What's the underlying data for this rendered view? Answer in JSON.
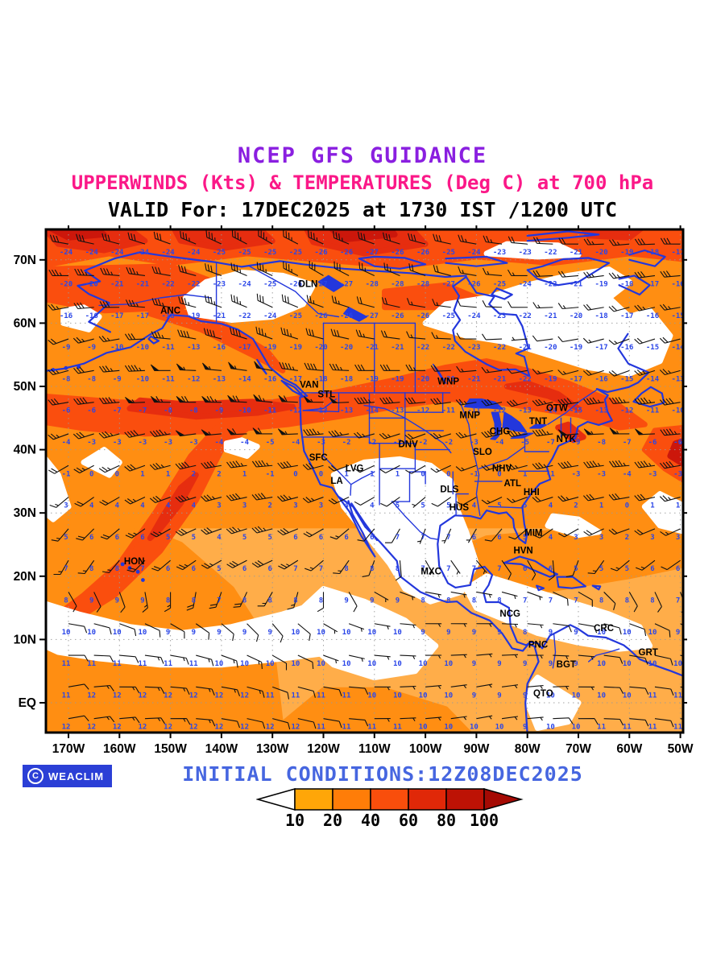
{
  "title": {
    "line1": "NCEP GFS GUIDANCE",
    "line2": "UPPERWINDS (Kts) & TEMPERATURES (Deg C) at 700 hPa",
    "line3": "VALID For: 17DEC2025 at 1730 IST /1200 UTC"
  },
  "footer": {
    "copyright": "C",
    "badge": "WEACLIM",
    "initial_conditions": "INITIAL CONDITIONS:12Z08DEC2025"
  },
  "colors": {
    "title1": "#8A1FE0",
    "title2": "#FB1888",
    "title3": "#000000",
    "initial_conditions": "#4666E0",
    "badge_bg": "#2B3FD6",
    "badge_text": "#FFFFFF",
    "coast": "#2337DC",
    "barb": "#111111",
    "temp_text": "#2B46E8",
    "station_text": "#000000",
    "grid_dots": "#9A9A9A",
    "frame": "#000000",
    "band_lt10": "#FFFFFF",
    "band_10": "#FFAD49",
    "band_20": "#FF8E12",
    "band_40": "#FA4E0E",
    "band_60": "#E62D0F",
    "band_80": "#CC170B"
  },
  "axes": {
    "lat_ticks": [
      {
        "label": "EQ",
        "lat": 0
      },
      {
        "label": "10N",
        "lat": 10
      },
      {
        "label": "20N",
        "lat": 20
      },
      {
        "label": "30N",
        "lat": 30
      },
      {
        "label": "40N",
        "lat": 40
      },
      {
        "label": "50N",
        "lat": 50
      },
      {
        "label": "60N",
        "lat": 60
      },
      {
        "label": "70N",
        "lat": 70
      }
    ],
    "lon_ticks": [
      {
        "label": "170W",
        "lon": 170
      },
      {
        "label": "160W",
        "lon": 160
      },
      {
        "label": "150W",
        "lon": 150
      },
      {
        "label": "140W",
        "lon": 140
      },
      {
        "label": "130W",
        "lon": 130
      },
      {
        "label": "120W",
        "lon": 120
      },
      {
        "label": "110W",
        "lon": 110
      },
      {
        "label": "100W",
        "lon": 100
      },
      {
        "label": "90W",
        "lon": 90
      },
      {
        "label": "80W",
        "lon": 80
      },
      {
        "label": "70W",
        "lon": 70
      },
      {
        "label": "60W",
        "lon": 60
      },
      {
        "label": "50W",
        "lon": 50
      }
    ]
  },
  "legend": {
    "values": [
      "10",
      "20",
      "40",
      "60",
      "80",
      "100"
    ],
    "colors": [
      "#FFA608",
      "#FF7D08",
      "#F94E0C",
      "#E02808",
      "#BD1205"
    ],
    "left_arrow_color": "#FFFFFF",
    "right_arrow_color": "#A50A04"
  },
  "stations": [
    {
      "id": "DLN",
      "lon_w": 123.0,
      "lat": 65.7
    },
    {
      "id": "ANC",
      "lon_w": 150.0,
      "lat": 61.5
    },
    {
      "id": "VAN",
      "lon_w": 122.8,
      "lat": 49.8
    },
    {
      "id": "STL",
      "lon_w": 119.4,
      "lat": 48.3
    },
    {
      "id": "WNP",
      "lon_w": 95.5,
      "lat": 50.3
    },
    {
      "id": "MNP",
      "lon_w": 91.3,
      "lat": 45.0
    },
    {
      "id": "CHG",
      "lon_w": 85.4,
      "lat": 42.4
    },
    {
      "id": "TNT",
      "lon_w": 77.9,
      "lat": 44.0
    },
    {
      "id": "OTW",
      "lon_w": 74.2,
      "lat": 46.1
    },
    {
      "id": "NYK",
      "lon_w": 72.4,
      "lat": 41.2
    },
    {
      "id": "DNV",
      "lon_w": 103.4,
      "lat": 40.4
    },
    {
      "id": "SLO",
      "lon_w": 88.8,
      "lat": 39.2
    },
    {
      "id": "SFC",
      "lon_w": 121.0,
      "lat": 38.3
    },
    {
      "id": "LVG",
      "lon_w": 113.9,
      "lat": 36.6
    },
    {
      "id": "LA",
      "lon_w": 117.4,
      "lat": 34.6
    },
    {
      "id": "NHV",
      "lon_w": 85.0,
      "lat": 36.6
    },
    {
      "id": "ATL",
      "lon_w": 82.9,
      "lat": 34.2
    },
    {
      "id": "DLS",
      "lon_w": 95.3,
      "lat": 33.3
    },
    {
      "id": "HUS",
      "lon_w": 93.4,
      "lat": 30.4
    },
    {
      "id": "HHI",
      "lon_w": 79.2,
      "lat": 32.8
    },
    {
      "id": "MIM",
      "lon_w": 78.8,
      "lat": 26.4
    },
    {
      "id": "HVN",
      "lon_w": 80.8,
      "lat": 23.6
    },
    {
      "id": "MXC",
      "lon_w": 98.9,
      "lat": 20.3
    },
    {
      "id": "HON",
      "lon_w": 157.1,
      "lat": 21.9
    },
    {
      "id": "NCG",
      "lon_w": 83.4,
      "lat": 13.6
    },
    {
      "id": "CRC",
      "lon_w": 65.0,
      "lat": 11.3
    },
    {
      "id": "PNC",
      "lon_w": 77.9,
      "lat": 8.7
    },
    {
      "id": "GRT",
      "lon_w": 56.3,
      "lat": 7.5
    },
    {
      "id": "BGT",
      "lon_w": 72.4,
      "lat": 5.6
    },
    {
      "id": "QTO",
      "lon_w": 76.9,
      "lat": 1.0
    }
  ],
  "chart_data": {
    "type": "map",
    "projection": "latlon",
    "level_hpa": 700,
    "units": {
      "wind": "Kts",
      "temperature": "Deg C"
    },
    "lon_range_w": [
      174.5,
      49.4
    ],
    "lat_range": [
      -4.8,
      74.8
    ],
    "wind_speed_bands_kts": [
      10,
      20,
      40,
      60,
      80,
      100
    ],
    "grid_lons_w": [
      170,
      160,
      150,
      140,
      130,
      120,
      110,
      100,
      90,
      80,
      70,
      60,
      50
    ],
    "grid_lats": [
      72.5,
      67.5,
      62.5,
      57.5,
      52.5,
      47.5,
      42.5,
      37.5,
      32.5,
      27.5,
      22.5,
      17.5,
      12.5,
      7.5,
      2.5,
      -2.5
    ],
    "temps_c": [
      [
        -24,
        -24,
        -24,
        -25,
        -25,
        -26,
        -27,
        -26,
        -24,
        -23,
        -21,
        -19,
        -17
      ],
      [
        -20,
        -21,
        -22,
        -23,
        -25,
        -27,
        -28,
        -28,
        -26,
        -24,
        -21,
        -18,
        -16
      ],
      [
        -16,
        -17,
        -18,
        -21,
        -24,
        -26,
        -27,
        -26,
        -24,
        -22,
        -20,
        -17,
        -15
      ],
      [
        -9,
        -10,
        -11,
        -16,
        -19,
        -20,
        -21,
        -22,
        -23,
        -21,
        -19,
        -16,
        -14
      ],
      [
        -8,
        -9,
        -11,
        -13,
        -16,
        -18,
        -19,
        -20,
        -21,
        -22,
        -17,
        -15,
        -13
      ],
      [
        -6,
        -7,
        -8,
        -9,
        -11,
        -13,
        -14,
        -12,
        -11,
        -13,
        -15,
        -12,
        -10
      ],
      [
        -4,
        -3,
        -3,
        -4,
        -5,
        -3,
        -2,
        -2,
        -3,
        -5,
        -9,
        -7,
        -6
      ],
      [
        -1,
        0,
        1,
        2,
        -1,
        0,
        1,
        0,
        -1,
        1,
        -3,
        -4,
        -3
      ],
      [
        3,
        4,
        4,
        3,
        2,
        3,
        4,
        5,
        4,
        5,
        2,
        0,
        1
      ],
      [
        5,
        6,
        5,
        4,
        5,
        6,
        6,
        7,
        6,
        5,
        3,
        2,
        3
      ],
      [
        7,
        8,
        6,
        5,
        6,
        7,
        8,
        7,
        7,
        6,
        5,
        5,
        6
      ],
      [
        8,
        9,
        8,
        7,
        8,
        8,
        9,
        8,
        8,
        7,
        7,
        8,
        7
      ],
      [
        10,
        10,
        9,
        9,
        9,
        10,
        10,
        9,
        9,
        8,
        9,
        10,
        9
      ],
      [
        11,
        11,
        11,
        10,
        10,
        10,
        10,
        10,
        9,
        9,
        9,
        10,
        10
      ],
      [
        11,
        12,
        12,
        12,
        11,
        11,
        10,
        10,
        9,
        9,
        10,
        10,
        11
      ],
      [
        12,
        12,
        12,
        12,
        12,
        11,
        11,
        10,
        10,
        9,
        10,
        11,
        11
      ]
    ],
    "wind_speed_kts": [
      [
        30,
        30,
        30,
        35,
        35,
        35,
        30,
        30,
        25,
        20,
        20,
        25,
        30
      ],
      [
        35,
        35,
        30,
        30,
        35,
        30,
        25,
        20,
        15,
        15,
        20,
        25,
        30
      ],
      [
        25,
        30,
        35,
        35,
        30,
        25,
        20,
        15,
        10,
        10,
        15,
        20,
        25
      ],
      [
        20,
        25,
        35,
        40,
        35,
        30,
        25,
        15,
        10,
        5,
        10,
        15,
        20
      ],
      [
        25,
        35,
        50,
        55,
        50,
        40,
        30,
        25,
        15,
        10,
        15,
        20,
        25
      ],
      [
        30,
        45,
        65,
        75,
        65,
        55,
        45,
        30,
        25,
        30,
        40,
        45,
        40
      ],
      [
        25,
        35,
        45,
        55,
        60,
        45,
        25,
        20,
        25,
        35,
        50,
        55,
        45
      ],
      [
        20,
        25,
        35,
        40,
        45,
        30,
        10,
        10,
        15,
        25,
        40,
        45,
        40
      ],
      [
        15,
        20,
        30,
        35,
        40,
        25,
        10,
        5,
        10,
        15,
        25,
        30,
        25
      ],
      [
        15,
        20,
        25,
        30,
        35,
        20,
        10,
        5,
        5,
        10,
        15,
        20,
        15
      ],
      [
        15,
        15,
        20,
        25,
        30,
        15,
        10,
        5,
        5,
        10,
        10,
        15,
        10
      ],
      [
        10,
        10,
        15,
        20,
        15,
        10,
        5,
        5,
        5,
        5,
        10,
        10,
        10
      ],
      [
        10,
        10,
        10,
        10,
        10,
        5,
        5,
        5,
        5,
        5,
        10,
        10,
        10
      ],
      [
        10,
        10,
        15,
        15,
        10,
        5,
        5,
        5,
        5,
        5,
        5,
        10,
        10
      ],
      [
        10,
        15,
        15,
        15,
        10,
        10,
        5,
        5,
        5,
        5,
        5,
        10,
        10
      ],
      [
        10,
        15,
        15,
        10,
        10,
        10,
        5,
        5,
        5,
        5,
        10,
        10,
        10
      ]
    ],
    "wind_dir_from_deg": [
      [
        280,
        285,
        290,
        295,
        300,
        295,
        290,
        285,
        280,
        275,
        270,
        265,
        270
      ],
      [
        270,
        275,
        280,
        290,
        295,
        300,
        295,
        290,
        280,
        270,
        265,
        260,
        265
      ],
      [
        260,
        270,
        280,
        290,
        295,
        290,
        285,
        280,
        275,
        270,
        265,
        255,
        260
      ],
      [
        250,
        260,
        275,
        285,
        290,
        285,
        280,
        275,
        270,
        265,
        260,
        250,
        255
      ],
      [
        255,
        265,
        270,
        275,
        280,
        275,
        270,
        270,
        265,
        260,
        255,
        250,
        255
      ],
      [
        260,
        265,
        270,
        270,
        275,
        270,
        265,
        265,
        260,
        255,
        260,
        265,
        260
      ],
      [
        250,
        255,
        260,
        265,
        270,
        265,
        255,
        250,
        255,
        260,
        265,
        270,
        265
      ],
      [
        240,
        245,
        255,
        260,
        265,
        255,
        245,
        240,
        250,
        255,
        260,
        265,
        260
      ],
      [
        230,
        240,
        250,
        255,
        260,
        250,
        240,
        230,
        240,
        250,
        255,
        260,
        255
      ],
      [
        220,
        230,
        240,
        250,
        255,
        240,
        220,
        200,
        210,
        230,
        240,
        250,
        245
      ],
      [
        210,
        220,
        230,
        240,
        245,
        230,
        200,
        150,
        140,
        150,
        200,
        230,
        235
      ],
      [
        150,
        160,
        180,
        200,
        210,
        180,
        120,
        100,
        100,
        110,
        120,
        150,
        160
      ],
      [
        100,
        110,
        120,
        130,
        140,
        120,
        100,
        90,
        90,
        95,
        100,
        110,
        120
      ],
      [
        90,
        95,
        100,
        110,
        120,
        110,
        95,
        90,
        85,
        90,
        95,
        100,
        105
      ],
      [
        80,
        90,
        95,
        100,
        110,
        100,
        90,
        85,
        80,
        85,
        90,
        95,
        100
      ],
      [
        80,
        85,
        90,
        100,
        105,
        100,
        90,
        85,
        80,
        85,
        90,
        95,
        100
      ]
    ]
  }
}
